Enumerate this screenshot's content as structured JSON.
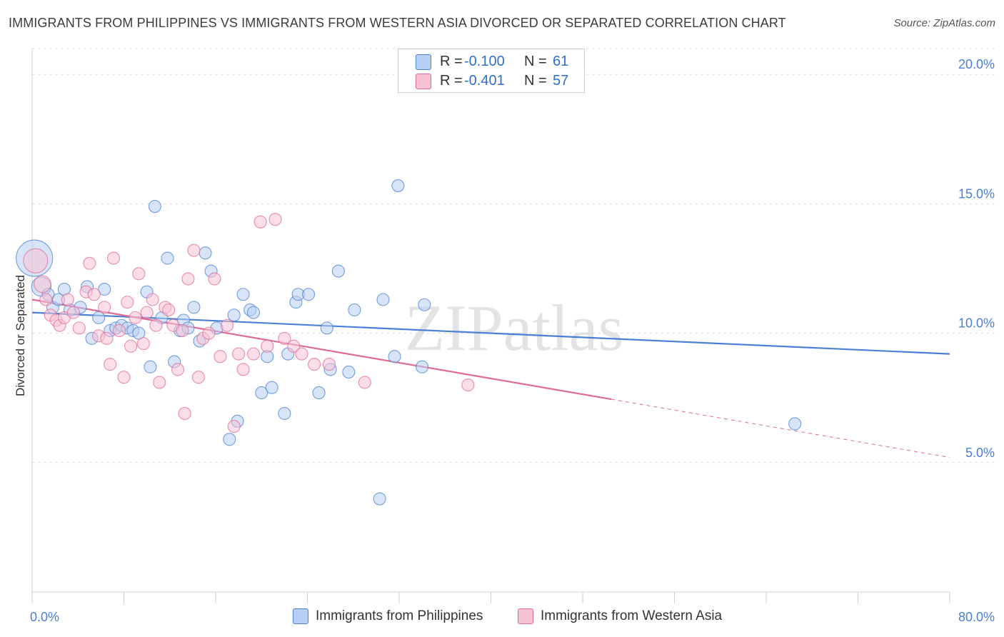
{
  "title": "IMMIGRANTS FROM PHILIPPINES VS IMMIGRANTS FROM WESTERN ASIA DIVORCED OR SEPARATED CORRELATION CHART",
  "source": "Source: ZipAtlas.com",
  "watermark": "ZIPatlas",
  "legend_top": {
    "rows": [
      {
        "r_label": "R =",
        "r_value": "-0.100",
        "n_label": "N =",
        "n_value": "61"
      },
      {
        "r_label": "R =",
        "r_value": "-0.401",
        "n_label": "N =",
        "n_value": "57"
      }
    ]
  },
  "chart_data": {
    "type": "scatter",
    "title": "IMMIGRANTS FROM PHILIPPINES VS IMMIGRANTS FROM WESTERN ASIA DIVORCED OR SEPARATED CORRELATION CHART",
    "xlabel": "",
    "ylabel": "Divorced or Separated",
    "xlim": [
      0,
      80
    ],
    "ylim": [
      0,
      21
    ],
    "x_tick_labels": [
      "0.0%",
      "80.0%"
    ],
    "y_tick_labels": [
      "5.0%",
      "10.0%",
      "15.0%",
      "20.0%"
    ],
    "y_ticks": [
      5,
      10,
      15,
      20
    ],
    "grid": true,
    "legend_position": "bottom",
    "colors": {
      "philippines": "#4a7fd6",
      "western_asia": "#e06a96",
      "philippines_fill": "#b8d0f4",
      "western_asia_fill": "#f7c3d4"
    },
    "series": [
      {
        "name": "Immigrants from Philippines",
        "r": -0.1,
        "n": 61,
        "trend": {
          "x0": 0,
          "y0": 10.8,
          "x1": 80,
          "y1": 9.2
        },
        "points": [
          [
            0.2,
            12.9,
            3
          ],
          [
            0.8,
            11.8,
            1.6
          ],
          [
            1.4,
            11.5,
            1
          ],
          [
            1.8,
            11.0,
            1
          ],
          [
            2.3,
            11.3,
            1
          ],
          [
            2.8,
            11.7,
            1
          ],
          [
            3.3,
            10.9,
            1
          ],
          [
            4.2,
            11.0,
            1
          ],
          [
            4.8,
            11.8,
            1
          ],
          [
            5.2,
            9.8,
            1
          ],
          [
            5.8,
            10.6,
            1
          ],
          [
            6.3,
            11.7,
            1
          ],
          [
            6.8,
            10.1,
            1
          ],
          [
            7.3,
            10.2,
            1
          ],
          [
            7.8,
            10.3,
            1
          ],
          [
            8.3,
            10.2,
            1
          ],
          [
            8.8,
            10.1,
            1
          ],
          [
            9.3,
            10.0,
            1
          ],
          [
            10.0,
            11.6,
            1
          ],
          [
            10.3,
            8.7,
            1
          ],
          [
            10.7,
            14.9,
            1
          ],
          [
            11.3,
            10.6,
            1
          ],
          [
            11.8,
            12.9,
            1
          ],
          [
            12.4,
            8.9,
            1
          ],
          [
            12.9,
            10.1,
            1
          ],
          [
            13.2,
            10.5,
            1
          ],
          [
            13.6,
            10.2,
            1
          ],
          [
            14.1,
            11.0,
            1
          ],
          [
            14.6,
            9.7,
            1
          ],
          [
            15.1,
            13.1,
            1
          ],
          [
            15.6,
            12.4,
            1
          ],
          [
            16.1,
            10.2,
            1
          ],
          [
            17.2,
            5.9,
            1
          ],
          [
            17.6,
            10.7,
            1
          ],
          [
            17.9,
            6.6,
            1
          ],
          [
            18.4,
            11.5,
            1
          ],
          [
            19.0,
            10.9,
            1
          ],
          [
            19.3,
            10.8,
            1
          ],
          [
            20.0,
            7.7,
            1
          ],
          [
            20.5,
            9.1,
            1
          ],
          [
            20.9,
            7.9,
            1
          ],
          [
            22.0,
            6.9,
            1
          ],
          [
            22.3,
            9.2,
            1
          ],
          [
            23.0,
            11.2,
            1
          ],
          [
            23.2,
            11.5,
            1
          ],
          [
            24.1,
            11.5,
            1
          ],
          [
            25.0,
            7.7,
            1
          ],
          [
            25.7,
            10.2,
            1
          ],
          [
            26.0,
            8.6,
            1
          ],
          [
            26.7,
            12.4,
            1
          ],
          [
            27.6,
            8.5,
            1
          ],
          [
            28.1,
            10.9,
            1
          ],
          [
            30.3,
            3.6,
            1
          ],
          [
            30.6,
            11.3,
            1
          ],
          [
            31.6,
            9.1,
            1
          ],
          [
            31.9,
            15.7,
            1
          ],
          [
            34.0,
            8.7,
            1
          ],
          [
            34.2,
            11.1,
            1
          ],
          [
            47.6,
            20.1,
            1
          ],
          [
            66.5,
            6.5,
            1
          ]
        ]
      },
      {
        "name": "Immigrants from Western Asia",
        "r": -0.401,
        "n": 57,
        "trend": {
          "x0": 0,
          "y0": 11.3,
          "x1": 80,
          "y1": 5.2,
          "solid_until_x": 50.5
        },
        "points": [
          [
            0.3,
            12.8,
            2
          ],
          [
            0.9,
            11.9,
            1.4
          ],
          [
            1.2,
            11.3,
            1
          ],
          [
            1.6,
            10.7,
            1
          ],
          [
            2.1,
            10.5,
            1
          ],
          [
            2.4,
            10.3,
            1
          ],
          [
            2.8,
            10.6,
            1
          ],
          [
            3.1,
            11.3,
            1
          ],
          [
            3.6,
            10.8,
            1
          ],
          [
            4.1,
            10.2,
            1
          ],
          [
            4.7,
            11.6,
            1
          ],
          [
            5.0,
            12.7,
            1
          ],
          [
            5.4,
            11.5,
            1
          ],
          [
            5.8,
            9.9,
            1
          ],
          [
            6.3,
            11.0,
            1
          ],
          [
            6.8,
            8.8,
            1
          ],
          [
            7.1,
            12.9,
            1
          ],
          [
            7.6,
            10.1,
            1
          ],
          [
            8.0,
            8.3,
            1
          ],
          [
            8.3,
            11.2,
            1
          ],
          [
            8.6,
            9.5,
            1
          ],
          [
            9.0,
            10.6,
            1
          ],
          [
            9.3,
            12.3,
            1
          ],
          [
            9.7,
            9.6,
            1
          ],
          [
            10.0,
            10.8,
            1
          ],
          [
            10.5,
            11.3,
            1
          ],
          [
            10.8,
            10.3,
            1
          ],
          [
            11.1,
            8.1,
            1
          ],
          [
            11.6,
            11.0,
            1
          ],
          [
            11.9,
            10.9,
            1
          ],
          [
            12.3,
            10.3,
            1
          ],
          [
            12.7,
            8.6,
            1
          ],
          [
            13.1,
            10.1,
            1
          ],
          [
            13.6,
            12.1,
            1
          ],
          [
            14.1,
            13.2,
            1
          ],
          [
            14.5,
            8.3,
            1
          ],
          [
            14.9,
            9.8,
            1
          ],
          [
            15.4,
            10.0,
            1
          ],
          [
            15.9,
            12.1,
            1
          ],
          [
            16.4,
            9.1,
            1
          ],
          [
            17.0,
            10.3,
            1
          ],
          [
            17.6,
            6.4,
            1
          ],
          [
            18.0,
            9.2,
            1
          ],
          [
            18.4,
            8.6,
            1
          ],
          [
            19.3,
            9.2,
            1
          ],
          [
            19.9,
            14.3,
            1
          ],
          [
            20.5,
            9.5,
            1
          ],
          [
            21.2,
            14.4,
            1
          ],
          [
            22.0,
            9.8,
            1
          ],
          [
            22.8,
            9.5,
            1
          ],
          [
            23.5,
            9.2,
            1
          ],
          [
            24.6,
            8.8,
            1
          ],
          [
            6.5,
            9.8,
            1
          ],
          [
            13.3,
            6.9,
            1
          ],
          [
            25.9,
            8.8,
            1
          ],
          [
            29.0,
            8.1,
            1
          ],
          [
            38.0,
            8.0,
            1
          ]
        ]
      }
    ]
  },
  "legend_bottom": {
    "items": [
      {
        "label": "Immigrants from Philippines"
      },
      {
        "label": "Immigrants from Western Asia"
      }
    ]
  }
}
